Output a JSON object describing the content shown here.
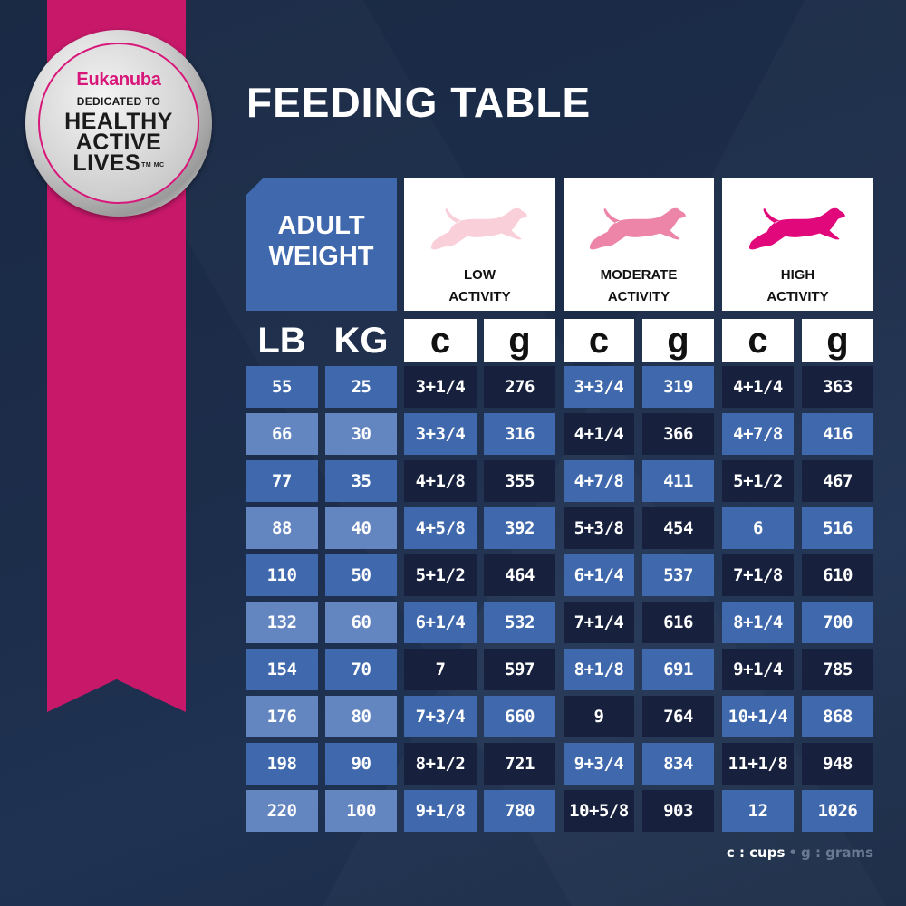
{
  "badge": {
    "brand": "Eukanuba",
    "line1": "DEDICATED TO",
    "line2": "HEALTHY",
    "line3": "ACTIVE",
    "line4": "LIVES",
    "trademark": "TM MC"
  },
  "title": "FEEDING TABLE",
  "header": {
    "adult_weight_line1": "ADULT",
    "adult_weight_line2": "WEIGHT",
    "lb": "LB",
    "kg": "KG",
    "activities": [
      {
        "line1": "LOW",
        "line2": "ACTIVITY",
        "icon": "running-dog-icon",
        "color": "#f9cfd9"
      },
      {
        "line1": "MODERATE",
        "line2": "ACTIVITY",
        "icon": "running-dog-icon",
        "color": "#ec85a8"
      },
      {
        "line1": "HIGH",
        "line2": "ACTIVITY",
        "icon": "running-dog-icon",
        "color": "#e0087a"
      }
    ],
    "cups_unit": "c",
    "grams_unit": "g"
  },
  "colors": {
    "background": "#1b2b47",
    "ribbon": "#c8186a",
    "cell_blue": "#4069ad",
    "cell_light_blue": "#6385c0",
    "cell_dark": "#17203d"
  },
  "rows": [
    {
      "lb": "55",
      "kg": "25",
      "low_c": "3+1/4",
      "low_g": "276",
      "mod_c": "3+3/4",
      "mod_g": "319",
      "high_c": "4+1/4",
      "high_g": "363"
    },
    {
      "lb": "66",
      "kg": "30",
      "low_c": "3+3/4",
      "low_g": "316",
      "mod_c": "4+1/4",
      "mod_g": "366",
      "high_c": "4+7/8",
      "high_g": "416"
    },
    {
      "lb": "77",
      "kg": "35",
      "low_c": "4+1/8",
      "low_g": "355",
      "mod_c": "4+7/8",
      "mod_g": "411",
      "high_c": "5+1/2",
      "high_g": "467"
    },
    {
      "lb": "88",
      "kg": "40",
      "low_c": "4+5/8",
      "low_g": "392",
      "mod_c": "5+3/8",
      "mod_g": "454",
      "high_c": "6",
      "high_g": "516"
    },
    {
      "lb": "110",
      "kg": "50",
      "low_c": "5+1/2",
      "low_g": "464",
      "mod_c": "6+1/4",
      "mod_g": "537",
      "high_c": "7+1/8",
      "high_g": "610"
    },
    {
      "lb": "132",
      "kg": "60",
      "low_c": "6+1/4",
      "low_g": "532",
      "mod_c": "7+1/4",
      "mod_g": "616",
      "high_c": "8+1/4",
      "high_g": "700"
    },
    {
      "lb": "154",
      "kg": "70",
      "low_c": "7",
      "low_g": "597",
      "mod_c": "8+1/8",
      "mod_g": "691",
      "high_c": "9+1/4",
      "high_g": "785"
    },
    {
      "lb": "176",
      "kg": "80",
      "low_c": "7+3/4",
      "low_g": "660",
      "mod_c": "9",
      "mod_g": "764",
      "high_c": "10+1/4",
      "high_g": "868"
    },
    {
      "lb": "198",
      "kg": "90",
      "low_c": "8+1/2",
      "low_g": "721",
      "mod_c": "9+3/4",
      "mod_g": "834",
      "high_c": "11+1/8",
      "high_g": "948"
    },
    {
      "lb": "220",
      "kg": "100",
      "low_c": "9+1/8",
      "low_g": "780",
      "mod_c": "10+5/8",
      "mod_g": "903",
      "high_c": "12",
      "high_g": "1026"
    }
  ],
  "legend": {
    "cups": "c : cups",
    "separator": "•",
    "grams": "g : grams"
  }
}
